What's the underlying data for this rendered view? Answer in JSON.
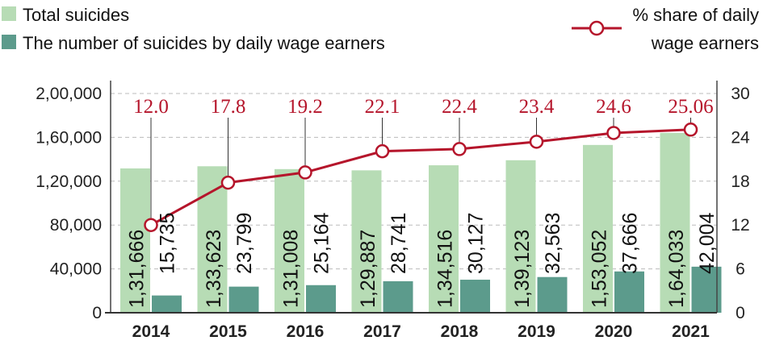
{
  "chart_data": {
    "type": "bar",
    "categories": [
      "2014",
      "2015",
      "2016",
      "2017",
      "2018",
      "2019",
      "2020",
      "2021"
    ],
    "series": [
      {
        "name": "Total suicides",
        "values": [
          131666,
          133623,
          131008,
          129887,
          134516,
          139123,
          153052,
          164033
        ],
        "labels": [
          "1,31,666",
          "1,33,623",
          "1,31,008",
          "1,29,887",
          "1,34,516",
          "1,39,123",
          "1,53,052",
          "1,64,033"
        ],
        "color": "#b7dcb5",
        "axis": "left"
      },
      {
        "name": "The number of suicides by daily wage earners",
        "values": [
          15735,
          23799,
          25164,
          28741,
          30127,
          32563,
          37666,
          42004
        ],
        "labels": [
          "15,735",
          "23,799",
          "25,164",
          "28,741",
          "30,127",
          "32,563",
          "37,666",
          "42,004"
        ],
        "color": "#5c9b8c",
        "axis": "left"
      },
      {
        "name": "% share of daily wage earners",
        "type": "line",
        "values": [
          12.0,
          17.8,
          19.2,
          22.1,
          22.4,
          23.4,
          24.6,
          25.06
        ],
        "labels": [
          "12.0",
          "17.8",
          "19.2",
          "22.1",
          "22.4",
          "23.4",
          "24.6",
          "25.06"
        ],
        "color": "#b5152b",
        "axis": "right"
      }
    ],
    "legend": {
      "left": [
        "Total suicides",
        "The number of suicides by daily wage earners"
      ],
      "right_line1": "% share of daily",
      "right_line2": "wage earners",
      "placement": "top"
    },
    "y_left": {
      "range": [
        0,
        200000
      ],
      "ticks": [
        "0",
        "40,000",
        "80,000",
        "1,20,000",
        "1,60,000",
        "2,00,000"
      ]
    },
    "y_right": {
      "range": [
        0,
        30
      ],
      "ticks": [
        "0",
        "6",
        "12",
        "18",
        "24",
        "30"
      ]
    },
    "grid": true
  }
}
